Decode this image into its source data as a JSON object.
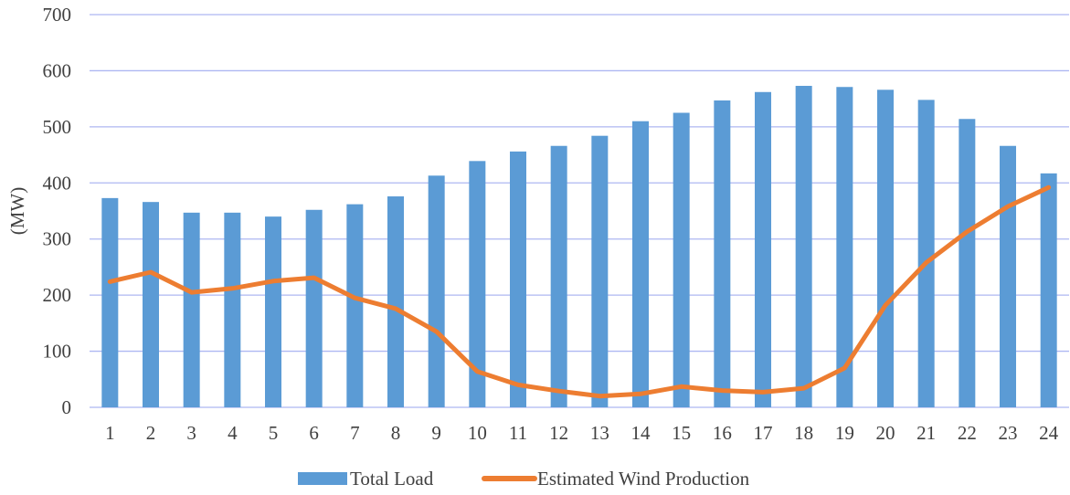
{
  "chart_data": {
    "type": "bar",
    "title": "",
    "xlabel": "",
    "ylabel": "(MW)",
    "ylim": [
      0,
      700
    ],
    "yticks": [
      0,
      100,
      200,
      300,
      400,
      500,
      600,
      700
    ],
    "grid": true,
    "legend_position": "bottom",
    "categories": [
      "1",
      "2",
      "3",
      "4",
      "5",
      "6",
      "7",
      "8",
      "9",
      "10",
      "11",
      "12",
      "13",
      "14",
      "15",
      "16",
      "17",
      "18",
      "19",
      "20",
      "21",
      "22",
      "23",
      "24"
    ],
    "series": [
      {
        "name": "Total Load",
        "type": "bar",
        "color": "#5b9bd5",
        "values": [
          373,
          366,
          347,
          347,
          340,
          352,
          362,
          376,
          413,
          439,
          456,
          466,
          484,
          510,
          525,
          547,
          562,
          573,
          571,
          566,
          548,
          514,
          466,
          417
        ]
      },
      {
        "name": "Estimated Wind Production",
        "type": "line",
        "color": "#ed7d31",
        "values": [
          224,
          241,
          205,
          212,
          225,
          231,
          195,
          176,
          135,
          64,
          40,
          29,
          20,
          24,
          37,
          30,
          27,
          34,
          70,
          182,
          258,
          313,
          358,
          392
        ]
      }
    ]
  }
}
